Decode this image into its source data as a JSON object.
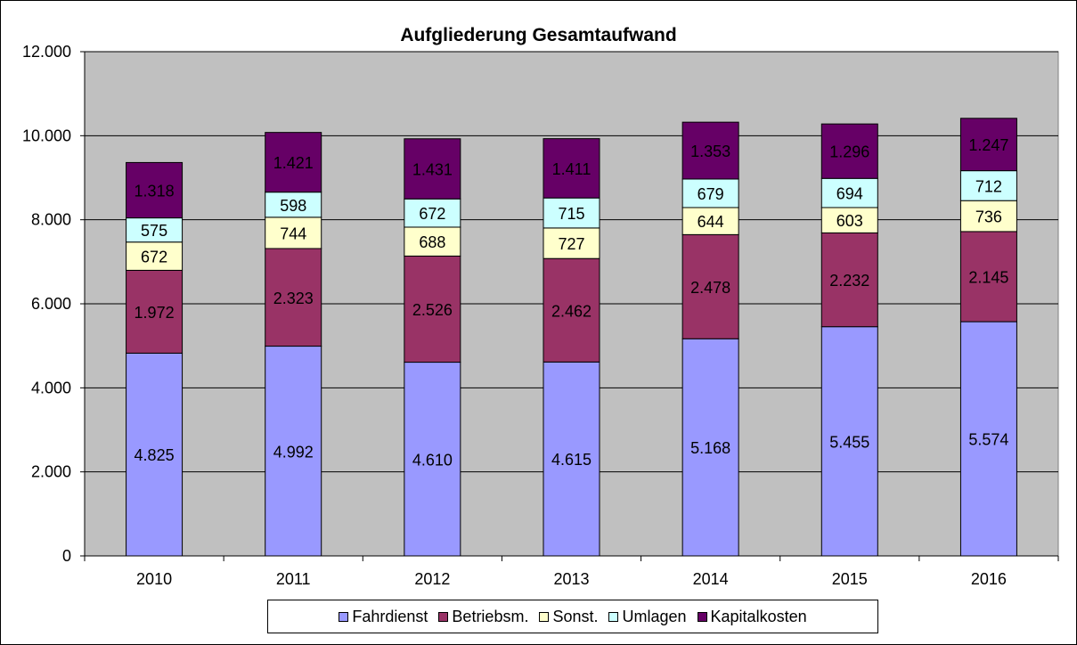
{
  "chart_data": {
    "type": "bar",
    "stacked": true,
    "title": "Aufgliederung Gesamtaufwand",
    "xlabel": "",
    "ylabel": "",
    "categories": [
      "2010",
      "2011",
      "2012",
      "2013",
      "2014",
      "2015",
      "2016"
    ],
    "ylim": [
      0,
      12000
    ],
    "yticks": [
      0,
      2000,
      4000,
      6000,
      8000,
      10000,
      12000
    ],
    "ytick_labels": [
      "0",
      "2.000",
      "4.000",
      "6.000",
      "8.000",
      "10.000",
      "12.000"
    ],
    "grid": true,
    "legend_position": "bottom",
    "plot_background": "#c0c0c0",
    "series": [
      {
        "name": "Fahrdienst",
        "color": "#9999ff",
        "values": [
          4825,
          4992,
          4610,
          4615,
          5168,
          5455,
          5574
        ],
        "labels": [
          "4.825",
          "4.992",
          "4.610",
          "4.615",
          "5.168",
          "5.455",
          "5.574"
        ],
        "label_color": "#000000"
      },
      {
        "name": "Betriebsm.",
        "color": "#993366",
        "values": [
          1972,
          2323,
          2526,
          2462,
          2478,
          2232,
          2145
        ],
        "labels": [
          "1.972",
          "2.323",
          "2.526",
          "2.462",
          "2.478",
          "2.232",
          "2.145"
        ],
        "label_color": "#000000"
      },
      {
        "name": "Sonst.",
        "color": "#ffffcc",
        "values": [
          672,
          744,
          688,
          727,
          644,
          603,
          736
        ],
        "labels": [
          "672",
          "744",
          "688",
          "727",
          "644",
          "603",
          "736"
        ],
        "label_color": "#000000"
      },
      {
        "name": "Umlagen",
        "color": "#ccffff",
        "values": [
          575,
          598,
          672,
          715,
          679,
          694,
          712
        ],
        "labels": [
          "575",
          "598",
          "672",
          "715",
          "679",
          "694",
          "712"
        ],
        "label_color": "#000000"
      },
      {
        "name": "Kapitalkosten",
        "color": "#660066",
        "values": [
          1318,
          1421,
          1431,
          1411,
          1353,
          1296,
          1247
        ],
        "labels": [
          "1.318",
          "1.421",
          "1.431",
          "1.411",
          "1.353",
          "1.296",
          "1.247"
        ],
        "label_color": "#000000"
      }
    ]
  }
}
